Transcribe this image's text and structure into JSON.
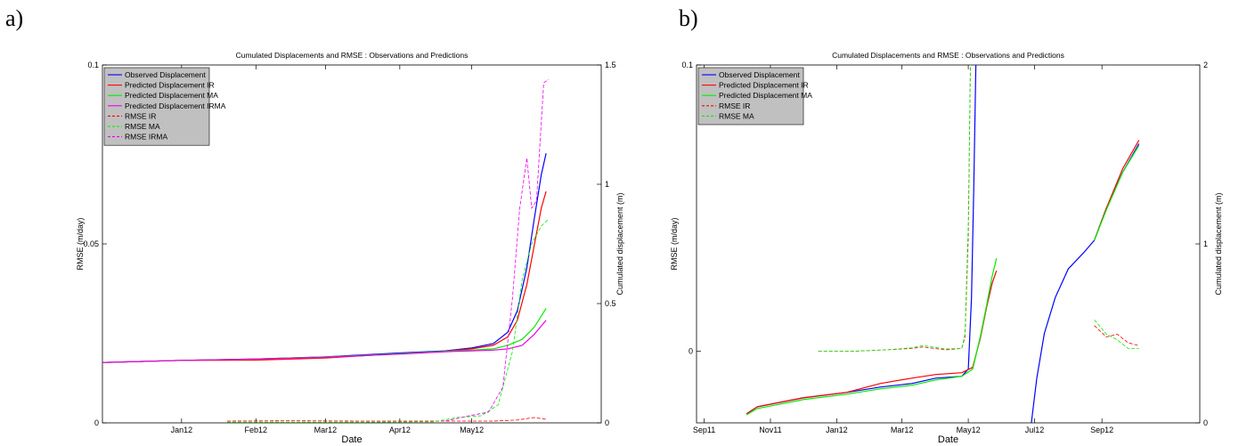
{
  "panels": {
    "a": {
      "tag": "a)"
    },
    "b": {
      "tag": "b)"
    }
  },
  "colors": {
    "observed": "#0000ff",
    "predicted_ir": "#ff0000",
    "predicted_ma": "#00ee00",
    "predicted_irma": "#ee00ee",
    "legend_bg": "#c0c0c0"
  },
  "chart_data": [
    {
      "id": "a",
      "type": "line",
      "title": "Cumulated Displacements and RMSE : Observations and Predictions",
      "xlabel": "Date",
      "ylabel": "RMSE (m/day)",
      "y2label": "Cumulated displacement (m)",
      "x_range": [
        "2011-11-29",
        "2012-06-24"
      ],
      "x_ticks": [
        {
          "date": "2012-01-01",
          "label": "Jan12"
        },
        {
          "date": "2012-02-01",
          "label": "Feb12"
        },
        {
          "date": "2012-03-01",
          "label": "Mar12"
        },
        {
          "date": "2012-04-01",
          "label": "Apr12"
        },
        {
          "date": "2012-05-01",
          "label": "May12"
        }
      ],
      "ylim": [
        0,
        0.1
      ],
      "y_ticks": [
        {
          "value": 0,
          "label": "0"
        },
        {
          "value": 0.05,
          "label": "0.05"
        },
        {
          "value": 0.1,
          "label": "0.1"
        }
      ],
      "y2lim": [
        0,
        1.5
      ],
      "y2_ticks": [
        {
          "value": 0,
          "label": "0"
        },
        {
          "value": 0.5,
          "label": "0.5"
        },
        {
          "value": 1,
          "label": "1"
        },
        {
          "value": 1.5,
          "label": "1.5"
        }
      ],
      "grid": false,
      "legend_position": "top-left",
      "series": [
        {
          "name": "Observed Displacement",
          "axis": "right",
          "style": "solid",
          "color": "#0000ff",
          "points": [
            [
              "2011-11-29",
              0.253
            ],
            [
              "2012-01-01",
              0.262
            ],
            [
              "2012-02-01",
              0.268
            ],
            [
              "2012-03-01",
              0.277
            ],
            [
              "2012-04-01",
              0.293
            ],
            [
              "2012-04-20",
              0.302
            ],
            [
              "2012-05-01",
              0.314
            ],
            [
              "2012-05-10",
              0.332
            ],
            [
              "2012-05-16",
              0.38
            ],
            [
              "2012-05-20",
              0.47
            ],
            [
              "2012-05-24",
              0.65
            ],
            [
              "2012-05-27",
              0.85
            ],
            [
              "2012-05-30",
              1.04
            ],
            [
              "2012-06-01",
              1.13
            ]
          ]
        },
        {
          "name": "Predicted Displacement IR",
          "axis": "right",
          "style": "solid",
          "color": "#ff0000",
          "points": [
            [
              "2011-11-29",
              0.253
            ],
            [
              "2012-01-01",
              0.262
            ],
            [
              "2012-02-01",
              0.263
            ],
            [
              "2012-03-01",
              0.272
            ],
            [
              "2012-04-01",
              0.29
            ],
            [
              "2012-04-20",
              0.3
            ],
            [
              "2012-05-01",
              0.31
            ],
            [
              "2012-05-10",
              0.325
            ],
            [
              "2012-05-16",
              0.36
            ],
            [
              "2012-05-20",
              0.43
            ],
            [
              "2012-05-24",
              0.58
            ],
            [
              "2012-05-27",
              0.74
            ],
            [
              "2012-05-30",
              0.9
            ],
            [
              "2012-06-01",
              0.97
            ]
          ]
        },
        {
          "name": "Predicted Displacement MA",
          "axis": "right",
          "style": "solid",
          "color": "#00ee00",
          "points": [
            [
              "2011-11-29",
              0.253
            ],
            [
              "2012-01-01",
              0.262
            ],
            [
              "2012-02-01",
              0.268
            ],
            [
              "2012-03-01",
              0.276
            ],
            [
              "2012-04-01",
              0.29
            ],
            [
              "2012-04-20",
              0.3
            ],
            [
              "2012-05-01",
              0.305
            ],
            [
              "2012-05-10",
              0.31
            ],
            [
              "2012-05-16",
              0.325
            ],
            [
              "2012-05-22",
              0.35
            ],
            [
              "2012-05-27",
              0.4
            ],
            [
              "2012-06-01",
              0.48
            ]
          ]
        },
        {
          "name": "Predicted Displacement IRMA",
          "axis": "right",
          "style": "solid",
          "color": "#ee00ee",
          "points": [
            [
              "2011-11-29",
              0.253
            ],
            [
              "2012-01-01",
              0.262
            ],
            [
              "2012-02-01",
              0.267
            ],
            [
              "2012-03-01",
              0.275
            ],
            [
              "2012-04-01",
              0.288
            ],
            [
              "2012-04-20",
              0.298
            ],
            [
              "2012-05-01",
              0.302
            ],
            [
              "2012-05-10",
              0.305
            ],
            [
              "2012-05-16",
              0.31
            ],
            [
              "2012-05-22",
              0.325
            ],
            [
              "2012-05-27",
              0.37
            ],
            [
              "2012-06-01",
              0.43
            ]
          ]
        },
        {
          "name": "RMSE IR",
          "axis": "left",
          "style": "dashed",
          "color": "#ff0000",
          "points": [
            [
              "2012-01-20",
              0.0005
            ],
            [
              "2012-02-15",
              0.0006
            ],
            [
              "2012-03-15",
              0.0005
            ],
            [
              "2012-04-15",
              0.0005
            ],
            [
              "2012-05-10",
              0.0005
            ],
            [
              "2012-05-20",
              0.0008
            ],
            [
              "2012-05-27",
              0.0015
            ],
            [
              "2012-06-01",
              0.001
            ]
          ]
        },
        {
          "name": "RMSE MA",
          "axis": "left",
          "style": "dashed",
          "color": "#00ee00",
          "points": [
            [
              "2012-01-20",
              0.0002
            ],
            [
              "2012-03-15",
              0.0002
            ],
            [
              "2012-04-15",
              0.0003
            ],
            [
              "2012-04-25",
              0.0015
            ],
            [
              "2012-05-05",
              0.002
            ],
            [
              "2012-05-12",
              0.005
            ],
            [
              "2012-05-18",
              0.02
            ],
            [
              "2012-05-22",
              0.04
            ],
            [
              "2012-05-26",
              0.05
            ],
            [
              "2012-05-30",
              0.055
            ],
            [
              "2012-06-02",
              0.057
            ]
          ]
        },
        {
          "name": "RMSE IRMA",
          "axis": "left",
          "style": "dashed",
          "color": "#ee00ee",
          "points": [
            [
              "2012-04-20",
              0.0005
            ],
            [
              "2012-04-30",
              0.002
            ],
            [
              "2012-05-08",
              0.003
            ],
            [
              "2012-05-14",
              0.01
            ],
            [
              "2012-05-18",
              0.035
            ],
            [
              "2012-05-21",
              0.06
            ],
            [
              "2012-05-24",
              0.074
            ],
            [
              "2012-05-26",
              0.06
            ],
            [
              "2012-05-28",
              0.062
            ],
            [
              "2012-05-31",
              0.095
            ],
            [
              "2012-06-02",
              0.096
            ]
          ]
        }
      ]
    },
    {
      "id": "b",
      "type": "line",
      "title": "Cumulated Displacements and RMSE : Observations and Predictions",
      "xlabel": "Date",
      "ylabel": "RMSE (m/day)",
      "y2label": "Cumulated displacement (m)",
      "x_range": [
        "2011-08-25",
        "2012-11-30"
      ],
      "x_ticks": [
        {
          "date": "2011-09-01",
          "label": "Sep11"
        },
        {
          "date": "2011-11-01",
          "label": "Nov11"
        },
        {
          "date": "2012-01-01",
          "label": "Jan12"
        },
        {
          "date": "2012-03-01",
          "label": "Mar12"
        },
        {
          "date": "2012-05-01",
          "label": "May12"
        },
        {
          "date": "2012-07-01",
          "label": "Jul12"
        },
        {
          "date": "2012-09-01",
          "label": "Sep12"
        }
      ],
      "ylim": [
        -0.025,
        0.1
      ],
      "y_ticks": [
        {
          "value": 0,
          "label": "0"
        },
        {
          "value": 0.1,
          "label": "0.1"
        }
      ],
      "y2lim": [
        0,
        2
      ],
      "y2_ticks": [
        {
          "value": 0,
          "label": "0"
        },
        {
          "value": 1,
          "label": "1"
        },
        {
          "value": 2,
          "label": "2"
        }
      ],
      "grid": false,
      "legend_position": "top-left",
      "series": [
        {
          "name": "Observed Displacement",
          "axis": "right",
          "style": "solid",
          "color": "#0000ff",
          "points": [
            [
              "2011-10-10",
              0.05
            ],
            [
              "2011-10-20",
              0.09
            ],
            [
              "2011-12-01",
              0.14
            ],
            [
              "2012-01-10",
              0.17
            ],
            [
              "2012-02-10",
              0.2
            ],
            [
              "2012-03-10",
              0.22
            ],
            [
              "2012-04-01",
              0.25
            ],
            [
              "2012-04-25",
              0.26
            ],
            [
              "2012-05-01",
              0.3
            ],
            [
              "2012-05-04",
              0.7
            ],
            [
              "2012-05-06",
              1.3
            ],
            [
              "2012-05-08",
              2.0
            ],
            null,
            [
              "2012-06-28",
              0.0
            ],
            [
              "2012-07-03",
              0.25
            ],
            [
              "2012-07-10",
              0.5
            ],
            [
              "2012-07-20",
              0.7
            ],
            [
              "2012-08-01",
              0.86
            ],
            [
              "2012-08-15",
              0.95
            ],
            [
              "2012-08-25",
              1.02
            ],
            [
              "2012-09-05",
              1.2
            ],
            [
              "2012-09-20",
              1.4
            ],
            [
              "2012-10-05",
              1.56
            ]
          ]
        },
        {
          "name": "Predicted Displacement IR",
          "axis": "right",
          "style": "solid",
          "color": "#ff0000",
          "points": [
            [
              "2011-10-10",
              0.05
            ],
            [
              "2011-10-20",
              0.09
            ],
            [
              "2011-12-01",
              0.14
            ],
            [
              "2012-01-10",
              0.17
            ],
            [
              "2012-02-10",
              0.22
            ],
            [
              "2012-03-10",
              0.25
            ],
            [
              "2012-04-01",
              0.27
            ],
            [
              "2012-04-25",
              0.28
            ],
            [
              "2012-05-05",
              0.31
            ],
            [
              "2012-05-12",
              0.47
            ],
            [
              "2012-05-18",
              0.65
            ],
            [
              "2012-05-23",
              0.78
            ],
            [
              "2012-05-27",
              0.85
            ],
            null,
            [
              "2012-08-25",
              1.02
            ],
            [
              "2012-09-05",
              1.2
            ],
            [
              "2012-09-20",
              1.42
            ],
            [
              "2012-10-05",
              1.58
            ]
          ]
        },
        {
          "name": "Predicted Displacement MA",
          "axis": "right",
          "style": "solid",
          "color": "#00ee00",
          "points": [
            [
              "2011-10-10",
              0.045
            ],
            [
              "2011-10-20",
              0.08
            ],
            [
              "2011-12-01",
              0.13
            ],
            [
              "2012-01-10",
              0.16
            ],
            [
              "2012-02-10",
              0.19
            ],
            [
              "2012-03-10",
              0.21
            ],
            [
              "2012-04-01",
              0.24
            ],
            [
              "2012-04-25",
              0.26
            ],
            [
              "2012-05-05",
              0.3
            ],
            [
              "2012-05-12",
              0.48
            ],
            [
              "2012-05-18",
              0.66
            ],
            [
              "2012-05-23",
              0.82
            ],
            [
              "2012-05-27",
              0.92
            ],
            null,
            [
              "2012-08-25",
              1.02
            ],
            [
              "2012-09-05",
              1.19
            ],
            [
              "2012-09-20",
              1.4
            ],
            [
              "2012-10-05",
              1.55
            ]
          ]
        },
        {
          "name": "RMSE IR",
          "axis": "left",
          "style": "dashed",
          "color": "#ff0000",
          "points": [
            [
              "2011-12-15",
              0.0
            ],
            [
              "2012-01-15",
              0.0
            ],
            [
              "2012-02-15",
              0.0005
            ],
            [
              "2012-03-10",
              0.001
            ],
            [
              "2012-03-20",
              0.0015
            ],
            [
              "2012-04-10",
              0.0005
            ],
            [
              "2012-04-25",
              0.001
            ],
            [
              "2012-04-28",
              0.005
            ],
            [
              "2012-05-01",
              0.04
            ],
            [
              "2012-05-03",
              0.1
            ],
            null,
            [
              "2012-08-25",
              0.009
            ],
            [
              "2012-09-05",
              0.005
            ],
            [
              "2012-09-15",
              0.006
            ],
            [
              "2012-09-25",
              0.003
            ],
            [
              "2012-10-05",
              0.002
            ]
          ]
        },
        {
          "name": "RMSE MA",
          "axis": "left",
          "style": "dashed",
          "color": "#00ee00",
          "points": [
            [
              "2011-12-15",
              0.0
            ],
            [
              "2012-01-15",
              0.0
            ],
            [
              "2012-02-15",
              0.0005
            ],
            [
              "2012-03-10",
              0.0012
            ],
            [
              "2012-03-20",
              0.002
            ],
            [
              "2012-04-10",
              0.0008
            ],
            [
              "2012-04-25",
              0.001
            ],
            [
              "2012-04-28",
              0.006
            ],
            [
              "2012-05-01",
              0.045
            ],
            [
              "2012-05-03",
              0.1
            ],
            null,
            [
              "2012-08-25",
              0.011
            ],
            [
              "2012-09-05",
              0.006
            ],
            [
              "2012-09-15",
              0.004
            ],
            [
              "2012-09-25",
              0.001
            ],
            [
              "2012-10-05",
              0.001
            ]
          ]
        }
      ]
    }
  ]
}
